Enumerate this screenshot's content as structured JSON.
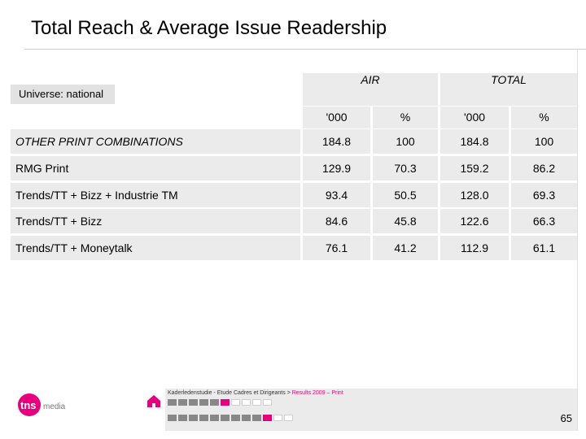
{
  "title": "Total Reach & Average Issue Readership",
  "universe": "Universe: national",
  "header": {
    "group1": "AIR",
    "group2": "TOTAL",
    "sub": [
      "'000",
      "%",
      "'000",
      "%"
    ]
  },
  "rows": [
    {
      "label": "OTHER PRINT COMBINATIONS",
      "values": [
        "184.8",
        "100",
        "184.8",
        "100"
      ]
    },
    {
      "label": "RMG Print",
      "values": [
        "129.9",
        "70.3",
        "159.2",
        "86.2"
      ]
    },
    {
      "label": "Trends/TT + Bizz + Industrie TM",
      "values": [
        "93.4",
        "50.5",
        "128.0",
        "69.3"
      ]
    },
    {
      "label": "Trends/TT + Bizz",
      "values": [
        "84.6",
        "45.8",
        "122.6",
        "66.3"
      ]
    },
    {
      "label": "Trends/TT + Moneytalk",
      "values": [
        "76.1",
        "41.2",
        "112.9",
        "61.1"
      ]
    }
  ],
  "footer": {
    "study": "Kaderledenstudie - Etude Cadres et Dirigeants > ",
    "section": "Results 2009 – Print",
    "page": "65",
    "logo_text": "tns",
    "logo_sub": "media",
    "progress_row1": [
      "done",
      "done",
      "done",
      "done",
      "done",
      "current",
      "off",
      "off",
      "off",
      "off"
    ],
    "progress_row2": [
      "done",
      "done",
      "done",
      "done",
      "done",
      "done",
      "done",
      "done",
      "done",
      "current",
      "off",
      "off"
    ]
  },
  "colors": {
    "accent": "#e6007e",
    "cell_bg": "#ebebeb",
    "universe_bg": "#e2e2e2"
  }
}
